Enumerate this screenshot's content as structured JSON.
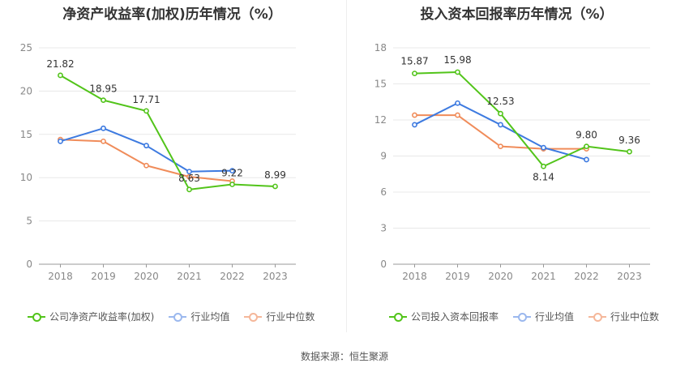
{
  "chart_data": [
    {
      "type": "line",
      "title": "净资产收益率(加权)历年情况（%）",
      "categories": [
        "2018",
        "2019",
        "2020",
        "2021",
        "2022",
        "2023"
      ],
      "ylim": [
        0,
        25
      ],
      "yticks": [
        0,
        5,
        10,
        15,
        20,
        25
      ],
      "grid": true,
      "legend_position": "bottom",
      "series": [
        {
          "name": "公司净资产收益率(加权)",
          "color": "#52c41a",
          "values": [
            21.82,
            18.95,
            17.71,
            8.63,
            9.22,
            8.99
          ],
          "labels": [
            "21.82",
            "18.95",
            "17.71",
            "8.63",
            "9.22",
            "8.99"
          ]
        },
        {
          "name": "行业均值",
          "color": "#3d7ae0",
          "values": [
            14.2,
            15.7,
            13.7,
            10.7,
            10.8,
            null
          ],
          "labels": []
        },
        {
          "name": "行业中位数",
          "color": "#f08c5a",
          "values": [
            14.4,
            14.2,
            11.4,
            10.1,
            9.6,
            null
          ],
          "labels": []
        }
      ]
    },
    {
      "type": "line",
      "title": "投入资本回报率历年情况（%）",
      "categories": [
        "2018",
        "2019",
        "2020",
        "2021",
        "2022",
        "2023"
      ],
      "ylim": [
        0,
        18
      ],
      "yticks": [
        0,
        3,
        6,
        9,
        12,
        15,
        18
      ],
      "grid": true,
      "legend_position": "bottom",
      "series": [
        {
          "name": "公司投入资本回报率",
          "color": "#52c41a",
          "values": [
            15.87,
            15.98,
            12.53,
            8.14,
            9.8,
            9.36
          ],
          "labels": [
            "15.87",
            "15.98",
            "12.53",
            "8.14",
            "9.80",
            "9.36"
          ]
        },
        {
          "name": "行业均值",
          "color": "#3d7ae0",
          "values": [
            11.6,
            13.4,
            11.6,
            9.7,
            8.7,
            null
          ],
          "labels": []
        },
        {
          "name": "行业中位数",
          "color": "#f08c5a",
          "values": [
            12.4,
            12.4,
            9.8,
            9.6,
            9.6,
            null
          ],
          "labels": []
        }
      ]
    }
  ],
  "footer": {
    "source": "数据来源：恒生聚源"
  }
}
